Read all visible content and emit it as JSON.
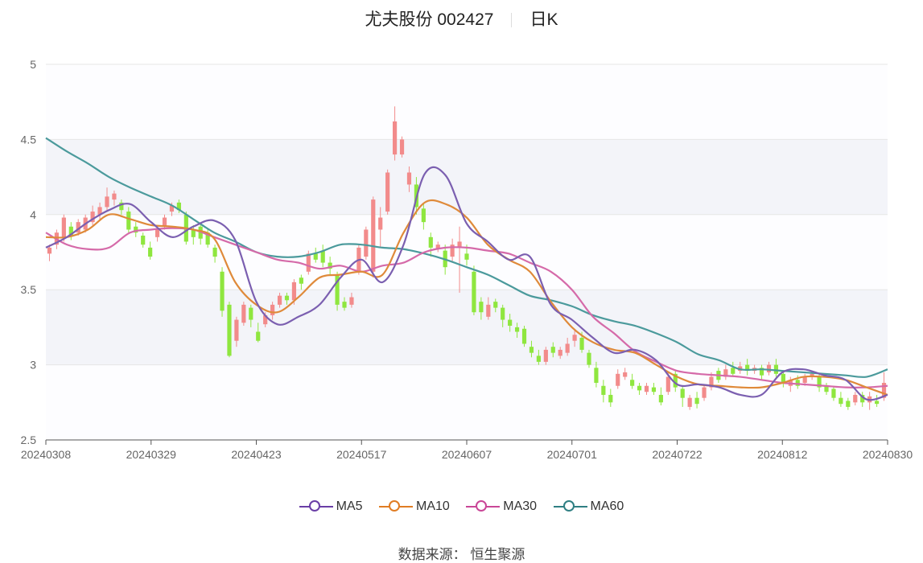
{
  "header": {
    "title": "尤夫股份 002427",
    "period": "日K"
  },
  "footer": {
    "source_label": "数据来源：",
    "source_name": "恒生聚源"
  },
  "colors": {
    "up": "#f28b8b",
    "down": "#8fe63f",
    "ma5": "#7b5fb0",
    "ma10": "#df8a3a",
    "ma30": "#d56aa9",
    "ma60": "#4b9a9c",
    "grid": "#e6e6e6",
    "band": "#f3f4f9"
  },
  "chart_data": {
    "type": "candlestick",
    "ylim": [
      2.5,
      5
    ],
    "yticks": [
      "2.5",
      "3",
      "3.5",
      "4",
      "4.5",
      "5"
    ],
    "xtick_labels": [
      "20240308",
      "20240329",
      "20240423",
      "20240517",
      "20240607",
      "20240701",
      "20240722",
      "20240812",
      "20240830"
    ],
    "legend": [
      "MA5",
      "MA10",
      "MA30",
      "MA60"
    ],
    "ma5": [
      3.78,
      3.85,
      3.95,
      4.03,
      4.07,
      3.95,
      3.85,
      3.92,
      3.96,
      3.83,
      3.42,
      3.27,
      3.32,
      3.4,
      3.58,
      3.7,
      3.55,
      3.8,
      4.27,
      4.26,
      3.94,
      3.82,
      3.7,
      3.72,
      3.4,
      3.3,
      3.18,
      3.08,
      3.1,
      3.03,
      2.87,
      2.87,
      2.85,
      2.8,
      2.8,
      2.95,
      2.97,
      2.93,
      2.9,
      2.77,
      2.8
    ],
    "ma10": [
      3.85,
      3.85,
      3.9,
      4.0,
      3.97,
      3.93,
      3.92,
      3.9,
      3.84,
      3.55,
      3.4,
      3.35,
      3.45,
      3.58,
      3.6,
      3.62,
      3.6,
      3.88,
      4.08,
      4.07,
      3.98,
      3.8,
      3.7,
      3.62,
      3.42,
      3.25,
      3.15,
      3.1,
      3.08,
      3.0,
      2.92,
      2.87,
      2.86,
      2.85,
      2.85,
      2.88,
      2.92,
      2.92,
      2.9,
      2.85,
      2.8
    ],
    "ma30": [
      3.88,
      3.8,
      3.77,
      3.78,
      3.88,
      3.9,
      3.91,
      3.9,
      3.85,
      3.8,
      3.75,
      3.7,
      3.68,
      3.64,
      3.66,
      3.62,
      3.66,
      3.68,
      3.75,
      3.78,
      3.78,
      3.76,
      3.74,
      3.68,
      3.62,
      3.5,
      3.32,
      3.21,
      3.09,
      3.02,
      2.96,
      2.94,
      2.93,
      2.92,
      2.9,
      2.88,
      2.87,
      2.86,
      2.85,
      2.85,
      2.86
    ],
    "ma60": [
      4.51,
      4.42,
      4.34,
      4.25,
      4.18,
      4.12,
      4.06,
      3.97,
      3.88,
      3.82,
      3.75,
      3.72,
      3.72,
      3.75,
      3.8,
      3.8,
      3.78,
      3.77,
      3.74,
      3.7,
      3.65,
      3.6,
      3.53,
      3.46,
      3.43,
      3.39,
      3.33,
      3.29,
      3.26,
      3.21,
      3.15,
      3.07,
      3.03,
      2.97,
      2.97,
      2.96,
      2.95,
      2.94,
      2.93,
      2.92,
      2.97
    ],
    "candles": [
      [
        3.74,
        3.78,
        3.69,
        3.8
      ],
      [
        3.8,
        3.88,
        3.77,
        3.9
      ],
      [
        3.85,
        3.98,
        3.82,
        4.0
      ],
      [
        3.92,
        3.86,
        3.83,
        3.95
      ],
      [
        3.88,
        3.95,
        3.86,
        3.97
      ],
      [
        3.9,
        3.98,
        3.88,
        4.0
      ],
      [
        3.95,
        4.02,
        3.93,
        4.06
      ],
      [
        4.0,
        4.05,
        3.97,
        4.08
      ],
      [
        4.05,
        4.12,
        4.02,
        4.18
      ],
      [
        4.1,
        4.14,
        4.06,
        4.16
      ],
      [
        4.08,
        4.03,
        4.0,
        4.1
      ],
      [
        4.02,
        3.9,
        3.88,
        4.05
      ],
      [
        3.92,
        3.88,
        3.85,
        3.95
      ],
      [
        3.86,
        3.8,
        3.78,
        3.88
      ],
      [
        3.78,
        3.72,
        3.7,
        3.82
      ],
      [
        3.85,
        3.9,
        3.82,
        3.93
      ],
      [
        3.92,
        3.98,
        3.9,
        4.0
      ],
      [
        4.02,
        4.06,
        3.99,
        4.08
      ],
      [
        4.08,
        4.03,
        4.01,
        4.1
      ],
      [
        4.0,
        3.82,
        3.8,
        4.02
      ],
      [
        3.9,
        3.85,
        3.8,
        3.93
      ],
      [
        3.92,
        3.84,
        3.8,
        3.94
      ],
      [
        3.88,
        3.8,
        3.78,
        3.9
      ],
      [
        3.78,
        3.72,
        3.68,
        3.8
      ],
      [
        3.62,
        3.36,
        3.32,
        3.65
      ],
      [
        3.4,
        3.06,
        3.05,
        3.42
      ],
      [
        3.16,
        3.3,
        3.12,
        3.32
      ],
      [
        3.28,
        3.4,
        3.26,
        3.42
      ],
      [
        3.38,
        3.3,
        3.25,
        3.4
      ],
      [
        3.22,
        3.16,
        3.15,
        3.28
      ],
      [
        3.27,
        3.33,
        3.25,
        3.35
      ],
      [
        3.33,
        3.4,
        3.3,
        3.42
      ],
      [
        3.4,
        3.46,
        3.38,
        3.48
      ],
      [
        3.46,
        3.43,
        3.4,
        3.48
      ],
      [
        3.43,
        3.55,
        3.4,
        3.57
      ],
      [
        3.58,
        3.54,
        3.5,
        3.6
      ],
      [
        3.62,
        3.74,
        3.6,
        3.76
      ],
      [
        3.74,
        3.7,
        3.68,
        3.78
      ],
      [
        3.76,
        3.68,
        3.65,
        3.8
      ],
      [
        3.68,
        3.64,
        3.6,
        3.72
      ],
      [
        3.6,
        3.4,
        3.36,
        3.62
      ],
      [
        3.42,
        3.38,
        3.36,
        3.45
      ],
      [
        3.4,
        3.45,
        3.38,
        3.48
      ],
      [
        3.62,
        3.78,
        3.6,
        3.8
      ],
      [
        3.72,
        3.9,
        3.7,
        3.92
      ],
      [
        3.62,
        4.1,
        3.58,
        4.12
      ],
      [
        3.9,
        3.98,
        3.78,
        4.05
      ],
      [
        4.02,
        4.28,
        4.0,
        4.3
      ],
      [
        4.4,
        4.62,
        4.36,
        4.72
      ],
      [
        4.4,
        4.5,
        4.38,
        4.52
      ],
      [
        4.2,
        4.28,
        4.15,
        4.32
      ],
      [
        4.2,
        4.05,
        4.0,
        4.25
      ],
      [
        4.04,
        3.95,
        3.9,
        4.08
      ],
      [
        3.85,
        3.78,
        3.72,
        3.88
      ],
      [
        3.77,
        3.8,
        3.75,
        3.82
      ],
      [
        3.76,
        3.65,
        3.6,
        3.8
      ],
      [
        3.72,
        3.8,
        3.68,
        3.84
      ],
      [
        3.78,
        3.82,
        3.48,
        3.92
      ],
      [
        3.74,
        3.7,
        3.66,
        3.8
      ],
      [
        3.62,
        3.35,
        3.33,
        3.66
      ],
      [
        3.42,
        3.35,
        3.3,
        3.45
      ],
      [
        3.32,
        3.4,
        3.3,
        3.45
      ],
      [
        3.42,
        3.38,
        3.35,
        3.44
      ],
      [
        3.38,
        3.3,
        3.25,
        3.4
      ],
      [
        3.3,
        3.26,
        3.22,
        3.34
      ],
      [
        3.25,
        3.22,
        3.18,
        3.28
      ],
      [
        3.24,
        3.14,
        3.12,
        3.26
      ],
      [
        3.12,
        3.08,
        3.05,
        3.16
      ],
      [
        3.06,
        3.02,
        3.0,
        3.1
      ],
      [
        3.02,
        3.1,
        3.0,
        3.12
      ],
      [
        3.12,
        3.08,
        3.05,
        3.15
      ],
      [
        3.06,
        3.1,
        3.04,
        3.12
      ],
      [
        3.08,
        3.14,
        3.06,
        3.18
      ],
      [
        3.16,
        3.2,
        3.12,
        3.24
      ],
      [
        3.18,
        3.1,
        3.08,
        3.22
      ],
      [
        3.08,
        3.0,
        2.98,
        3.1
      ],
      [
        2.98,
        2.88,
        2.85,
        3.02
      ],
      [
        2.86,
        2.8,
        2.75,
        2.9
      ],
      [
        2.8,
        2.75,
        2.72,
        2.84
      ],
      [
        2.86,
        2.94,
        2.84,
        2.97
      ],
      [
        2.92,
        2.95,
        2.9,
        2.98
      ],
      [
        2.9,
        2.86,
        2.84,
        2.94
      ],
      [
        2.86,
        2.83,
        2.8,
        2.88
      ],
      [
        2.82,
        2.86,
        2.8,
        2.88
      ],
      [
        2.85,
        2.82,
        2.8,
        2.88
      ],
      [
        2.8,
        2.75,
        2.73,
        2.85
      ],
      [
        2.82,
        2.92,
        2.8,
        2.95
      ],
      [
        2.94,
        2.85,
        2.82,
        2.96
      ],
      [
        2.84,
        2.78,
        2.72,
        2.86
      ],
      [
        2.72,
        2.78,
        2.7,
        2.8
      ],
      [
        2.78,
        2.74,
        2.71,
        2.82
      ],
      [
        2.78,
        2.85,
        2.76,
        2.86
      ],
      [
        2.85,
        2.92,
        2.83,
        2.95
      ],
      [
        2.96,
        2.9,
        2.88,
        2.98
      ],
      [
        2.92,
        2.97,
        2.9,
        3.0
      ],
      [
        2.98,
        2.94,
        2.92,
        3.02
      ],
      [
        2.96,
        2.99,
        2.94,
        3.02
      ],
      [
        3.0,
        2.96,
        2.93,
        3.04
      ],
      [
        2.96,
        2.98,
        2.94,
        3.0
      ],
      [
        2.98,
        2.93,
        2.9,
        3.0
      ],
      [
        2.95,
        3.0,
        2.93,
        3.02
      ],
      [
        3.0,
        2.94,
        2.92,
        3.04
      ],
      [
        2.94,
        2.88,
        2.85,
        2.96
      ],
      [
        2.86,
        2.9,
        2.82,
        2.92
      ],
      [
        2.9,
        2.86,
        2.84,
        2.93
      ],
      [
        2.88,
        2.92,
        2.86,
        2.94
      ],
      [
        2.92,
        2.94,
        2.9,
        2.96
      ],
      [
        2.92,
        2.85,
        2.82,
        2.94
      ],
      [
        2.86,
        2.82,
        2.8,
        2.88
      ],
      [
        2.84,
        2.78,
        2.76,
        2.86
      ],
      [
        2.78,
        2.74,
        2.72,
        2.82
      ],
      [
        2.76,
        2.72,
        2.7,
        2.78
      ],
      [
        2.75,
        2.8,
        2.73,
        2.82
      ],
      [
        2.8,
        2.75,
        2.72,
        2.82
      ],
      [
        2.75,
        2.79,
        2.7,
        2.82
      ],
      [
        2.76,
        2.74,
        2.72,
        2.8
      ],
      [
        2.78,
        2.88,
        2.76,
        2.95
      ]
    ]
  }
}
